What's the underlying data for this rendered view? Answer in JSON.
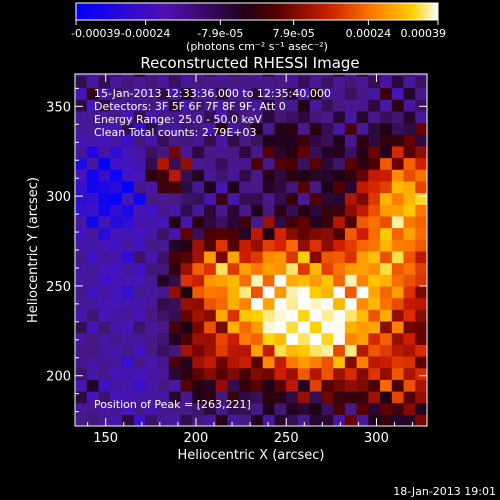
{
  "chart_data": {
    "type": "heatmap",
    "title": "Reconstructed RHESSI Image",
    "xlabel": "Heliocentric X (arcsec)",
    "ylabel": "Heliocentric Y (arcsec)",
    "xlim": [
      133,
      328
    ],
    "ylim": [
      172,
      368
    ],
    "xticks": [
      150,
      200,
      250,
      300
    ],
    "yticks": [
      200,
      250,
      300,
      350
    ],
    "colorbar": {
      "range": [
        -0.00039,
        0.00039
      ],
      "tick_labels": [
        "-0.00039",
        "-0.00024",
        "-7.9e-05",
        "7.9e-05",
        "0.00024",
        "0.00039"
      ],
      "unit_label": "(photons cm⁻² s⁻¹ asec⁻²)",
      "colors": [
        "#0000ff",
        "#4a0cb0",
        "#1a0010",
        "#400000",
        "#cc2000",
        "#ff7a00",
        "#ffd000",
        "#ffffff"
      ]
    },
    "annotations": [
      "15-Jan-2013 12:33:36.000 to 12:35:40.000",
      "Detectors: 3F 5F 6F 7F 8F 9F, Att 0",
      "Energy Range: 25.0 - 50.0 keV",
      "Clean      Total counts: 2.79E+03"
    ],
    "peak_label": "Position of Peak = [263,221]",
    "peak": [
      263,
      221
    ],
    "grid": false
  },
  "footer": {
    "timestamp": "18-Jan-2013 19:01"
  }
}
